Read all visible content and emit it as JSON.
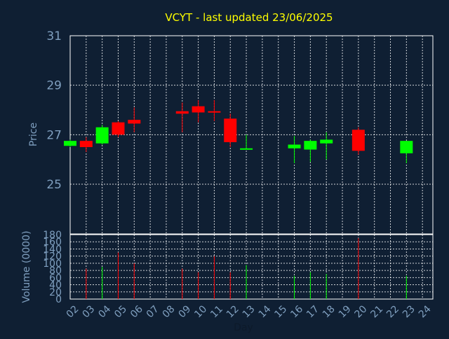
{
  "chart_data": {
    "type": "candlestick",
    "title": "VCYT - last updated 23/06/2025",
    "xlabel": "Day",
    "price_panel": {
      "ylabel": "Price",
      "ylim": [
        25,
        31
      ],
      "yticks": [
        25,
        27,
        29,
        31
      ],
      "grid": true
    },
    "volume_panel": {
      "ylabel": "Volume (0000)",
      "ylim": [
        0,
        180
      ],
      "yticks": [
        0,
        20,
        40,
        60,
        80,
        100,
        120,
        140,
        160,
        180
      ],
      "grid": true
    },
    "x_ticks": [
      "02",
      "03",
      "04",
      "05",
      "06",
      "07",
      "08",
      "09",
      "10",
      "11",
      "12",
      "13",
      "14",
      "15",
      "16",
      "17",
      "18",
      "19",
      "20",
      "21",
      "22",
      "23",
      "24"
    ],
    "candles": [
      {
        "day": "02",
        "open": 26.55,
        "close": 26.75,
        "high": 26.8,
        "low": 26.5,
        "volume": 0
      },
      {
        "day": "03",
        "open": 26.75,
        "close": 26.5,
        "high": 26.9,
        "low": 26.3,
        "volume": 85
      },
      {
        "day": "04",
        "open": 26.65,
        "close": 27.3,
        "high": 27.4,
        "low": 26.6,
        "volume": 90
      },
      {
        "day": "05",
        "open": 27.5,
        "close": 27.0,
        "high": 27.55,
        "low": 26.9,
        "volume": 130
      },
      {
        "day": "06",
        "open": 27.6,
        "close": 27.45,
        "high": 28.1,
        "low": 27.1,
        "volume": 100
      },
      {
        "day": "09",
        "open": 27.95,
        "close": 27.85,
        "high": 28.3,
        "low": 27.1,
        "volume": 85
      },
      {
        "day": "10",
        "open": 28.15,
        "close": 27.9,
        "high": 28.4,
        "low": 27.5,
        "volume": 75
      },
      {
        "day": "11",
        "open": 27.95,
        "close": 27.9,
        "high": 28.4,
        "low": 27.55,
        "volume": 120
      },
      {
        "day": "12",
        "open": 27.65,
        "close": 26.7,
        "high": 27.85,
        "low": 26.5,
        "volume": 75
      },
      {
        "day": "13",
        "open": 26.4,
        "close": 26.45,
        "high": 27.0,
        "low": 26.4,
        "volume": 95
      },
      {
        "day": "16",
        "open": 26.45,
        "close": 26.6,
        "high": 26.95,
        "low": 25.85,
        "volume": 65
      },
      {
        "day": "17",
        "open": 26.4,
        "close": 26.75,
        "high": 26.8,
        "low": 25.9,
        "volume": 75
      },
      {
        "day": "18",
        "open": 26.65,
        "close": 26.8,
        "high": 27.1,
        "low": 26.0,
        "volume": 70
      },
      {
        "day": "20",
        "open": 27.2,
        "close": 26.35,
        "high": 27.3,
        "low": 26.2,
        "volume": 170
      },
      {
        "day": "23",
        "open": 26.25,
        "close": 26.75,
        "high": 26.75,
        "low": 25.85,
        "volume": 65
      }
    ],
    "colors": {
      "background": "#0f1f33",
      "up": "#00ff00",
      "down": "#ff0000",
      "title": "#ffff00",
      "axis_text": "#7f9fbf",
      "grid": "#ffffff"
    }
  }
}
